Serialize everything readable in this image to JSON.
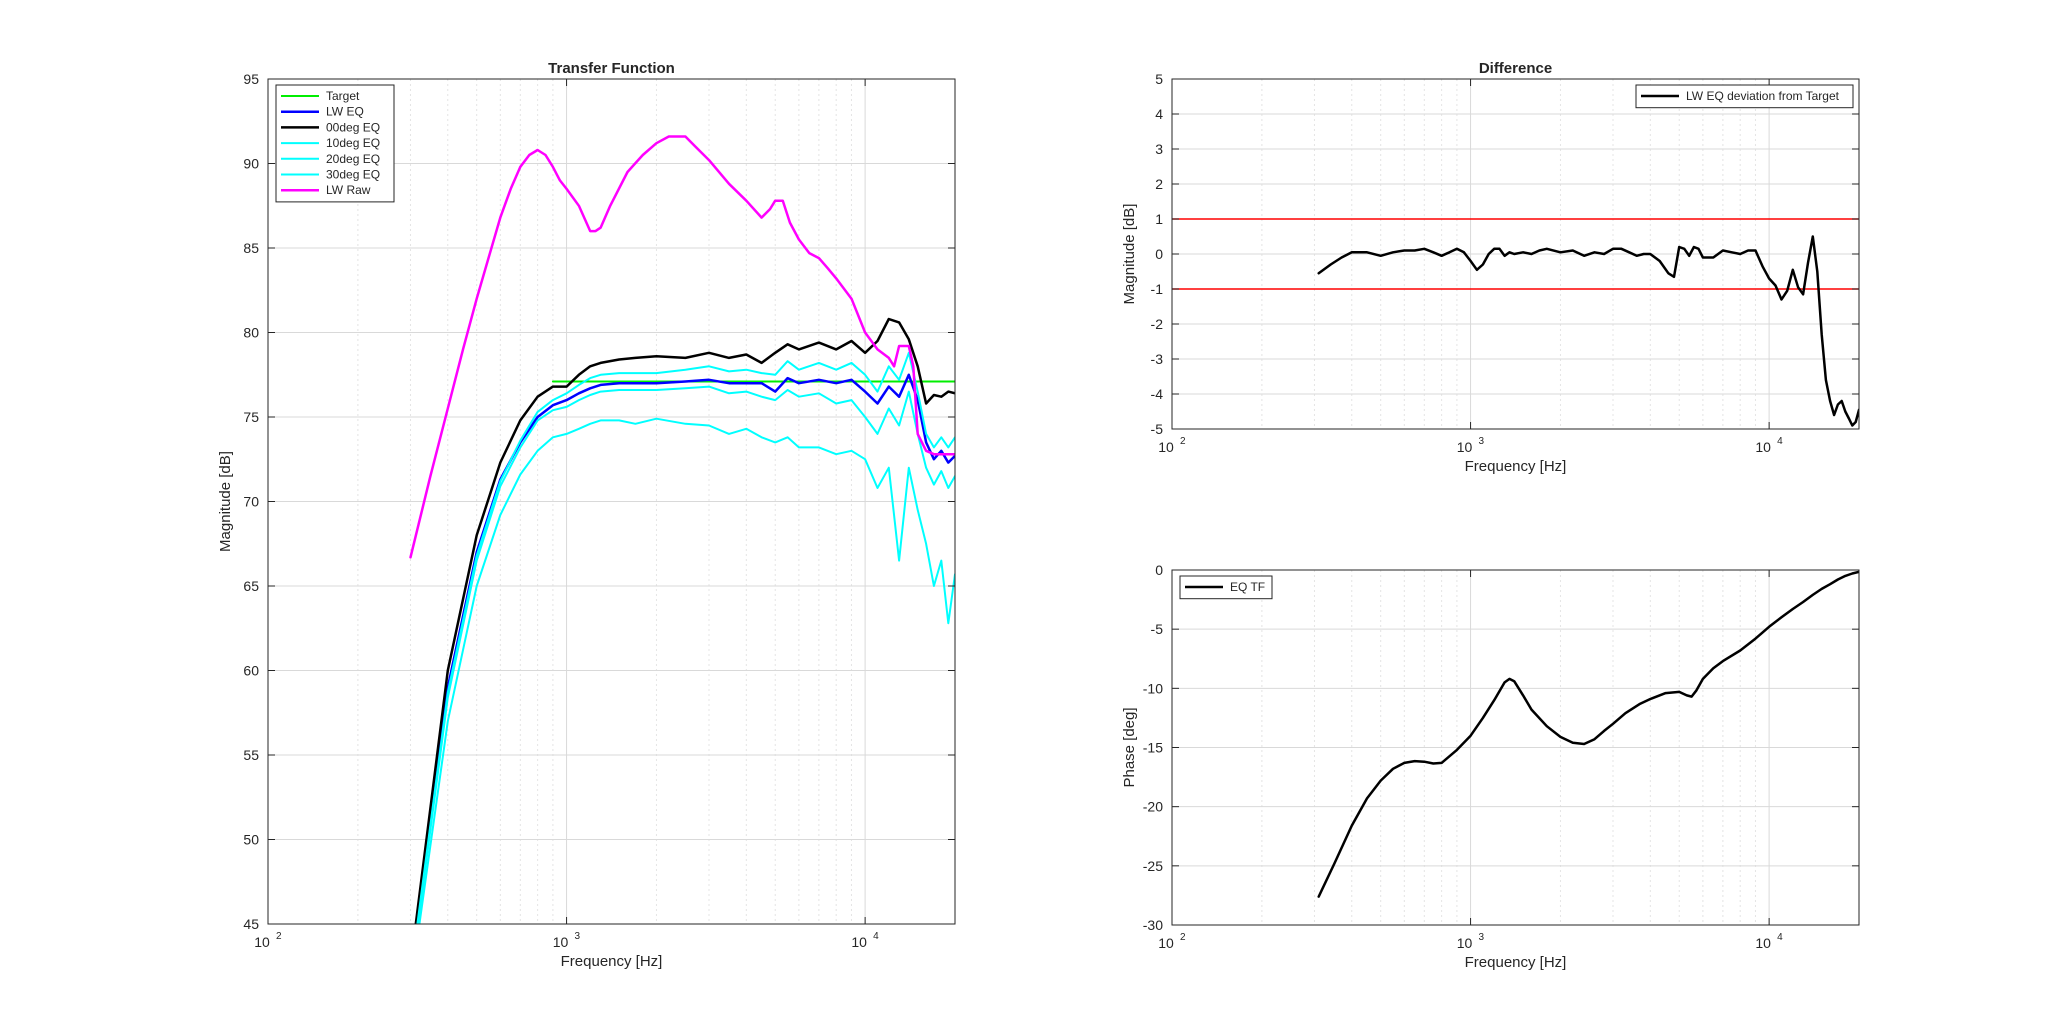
{
  "chart_data": [
    {
      "id": "tf",
      "type": "line",
      "title": "Transfer Function",
      "xlabel": "Frequency [Hz]",
      "ylabel": "Magnitude [dB]",
      "xscale": "log",
      "xlim": [
        100,
        20000
      ],
      "ylim": [
        45,
        95
      ],
      "xticks": [
        100,
        1000,
        10000
      ],
      "xtick_labels": [
        "10",
        "10",
        "10"
      ],
      "xtick_exponents": [
        "2",
        "3",
        "4"
      ],
      "yticks": [
        45,
        50,
        55,
        60,
        65,
        70,
        75,
        80,
        85,
        90,
        95
      ],
      "ytick_labels": [
        "45",
        "50",
        "55",
        "60",
        "65",
        "70",
        "75",
        "80",
        "85",
        "90",
        "95"
      ],
      "grid": true,
      "legend_position": "top-left",
      "series": [
        {
          "name": "Target",
          "color": "#00ee00",
          "width": 2,
          "x": [
            900,
            20000
          ],
          "y": [
            77.1,
            77.1
          ]
        },
        {
          "name": "LW EQ",
          "color": "#0000ff",
          "width": 2.5,
          "x": [
            310,
            400,
            500,
            600,
            700,
            800,
            900,
            1000,
            1100,
            1200,
            1300,
            1500,
            1700,
            2000,
            2500,
            3000,
            3500,
            4000,
            4500,
            5000,
            5500,
            6000,
            7000,
            8000,
            9000,
            10000,
            11000,
            12000,
            13000,
            14000,
            15000,
            16000,
            17000,
            18000,
            19000,
            20000
          ],
          "y": [
            44,
            59,
            67,
            71.3,
            73.5,
            75,
            75.7,
            76,
            76.4,
            76.7,
            76.9,
            77,
            77,
            77,
            77.1,
            77.2,
            77,
            77,
            77,
            76.5,
            77.3,
            77,
            77.2,
            77,
            77.2,
            76.5,
            75.8,
            76.8,
            76.2,
            77.5,
            76,
            73.5,
            72.5,
            73,
            72.3,
            72.7
          ]
        },
        {
          "name": "00deg EQ",
          "color": "#000000",
          "width": 2.5,
          "x": [
            310,
            400,
            500,
            600,
            700,
            800,
            900,
            1000,
            1100,
            1200,
            1300,
            1500,
            1700,
            2000,
            2500,
            3000,
            3500,
            4000,
            4500,
            5000,
            5500,
            6000,
            7000,
            8000,
            9000,
            10000,
            11000,
            12000,
            13000,
            14000,
            15000,
            16000,
            17000,
            18000,
            19000,
            20000
          ],
          "y": [
            44.5,
            60,
            68,
            72.3,
            74.8,
            76.2,
            76.8,
            76.8,
            77.5,
            78,
            78.2,
            78.4,
            78.5,
            78.6,
            78.5,
            78.8,
            78.5,
            78.7,
            78.2,
            78.8,
            79.3,
            79,
            79.4,
            79,
            79.5,
            78.8,
            79.5,
            80.8,
            80.6,
            79.6,
            78,
            75.8,
            76.3,
            76.2,
            76.5,
            76.4
          ]
        },
        {
          "name": "10deg EQ",
          "color": "#00ffff",
          "width": 2,
          "x": [
            310,
            400,
            500,
            600,
            700,
            800,
            900,
            1000,
            1100,
            1200,
            1300,
            1500,
            1700,
            2000,
            2500,
            3000,
            3500,
            4000,
            4500,
            5000,
            5500,
            6000,
            7000,
            8000,
            9000,
            10000,
            11000,
            12000,
            13000,
            14000,
            15000,
            16000,
            17000,
            18000,
            19000,
            20000
          ],
          "y": [
            43.8,
            58.7,
            66.8,
            71.2,
            73.6,
            75.3,
            76,
            76.4,
            76.9,
            77.3,
            77.5,
            77.6,
            77.6,
            77.6,
            77.8,
            78,
            77.7,
            77.8,
            77.6,
            77.5,
            78.3,
            77.8,
            78.2,
            77.8,
            78.2,
            77.5,
            76.5,
            78,
            77.2,
            78.8,
            76.5,
            74,
            73.2,
            73.8,
            73.2,
            73.8
          ]
        },
        {
          "name": "20deg EQ",
          "color": "#00ffff",
          "width": 2,
          "x": [
            310,
            400,
            500,
            600,
            700,
            800,
            900,
            1000,
            1100,
            1200,
            1300,
            1500,
            1700,
            2000,
            2500,
            3000,
            3500,
            4000,
            4500,
            5000,
            5500,
            6000,
            7000,
            8000,
            9000,
            10000,
            11000,
            12000,
            13000,
            14000,
            15000,
            16000,
            17000,
            18000,
            19000,
            20000
          ],
          "y": [
            43.5,
            58.4,
            66.5,
            70.9,
            73.2,
            74.8,
            75.4,
            75.6,
            76,
            76.3,
            76.5,
            76.6,
            76.6,
            76.6,
            76.7,
            76.8,
            76.4,
            76.5,
            76.2,
            76,
            76.6,
            76.2,
            76.4,
            75.8,
            76,
            75,
            74,
            75.5,
            74.5,
            76.5,
            74,
            72,
            71,
            71.8,
            70.8,
            71.5
          ]
        },
        {
          "name": "30deg EQ",
          "color": "#00ffff",
          "width": 2,
          "x": [
            310,
            400,
            500,
            600,
            700,
            800,
            900,
            1000,
            1100,
            1200,
            1300,
            1500,
            1700,
            2000,
            2500,
            3000,
            3500,
            4000,
            4500,
            5000,
            5500,
            6000,
            7000,
            8000,
            9000,
            10000,
            11000,
            12000,
            13000,
            14000,
            15000,
            16000,
            17000,
            18000,
            19000,
            20000
          ],
          "y": [
            43,
            57,
            65,
            69.2,
            71.6,
            73,
            73.8,
            74,
            74.3,
            74.6,
            74.8,
            74.8,
            74.6,
            74.9,
            74.6,
            74.5,
            74,
            74.3,
            73.8,
            73.5,
            73.8,
            73.2,
            73.2,
            72.8,
            73,
            72.5,
            70.8,
            72,
            66.5,
            72,
            69.5,
            67.5,
            65,
            66.5,
            62.8,
            65.7
          ]
        },
        {
          "name": "LW Raw",
          "color": "#ff00ff",
          "width": 2.5,
          "x": [
            300,
            350,
            400,
            450,
            500,
            550,
            600,
            650,
            700,
            750,
            800,
            850,
            900,
            950,
            1000,
            1100,
            1200,
            1250,
            1300,
            1400,
            1600,
            1800,
            2000,
            2200,
            2500,
            2700,
            3000,
            3500,
            4000,
            4500,
            4800,
            5000,
            5300,
            5600,
            6000,
            6500,
            7000,
            7500,
            8000,
            9000,
            10000,
            11000,
            12000,
            12500,
            13000,
            14000,
            14500,
            15000,
            16000,
            17000,
            18000,
            19000,
            20000
          ],
          "y": [
            66.7,
            71.5,
            75.5,
            79,
            82,
            84.5,
            86.8,
            88.5,
            89.8,
            90.5,
            90.8,
            90.5,
            89.8,
            89,
            88.5,
            87.5,
            86,
            86,
            86.2,
            87.5,
            89.5,
            90.5,
            91.2,
            91.6,
            91.6,
            91,
            90.2,
            88.8,
            87.8,
            86.8,
            87.3,
            87.8,
            87.8,
            86.5,
            85.5,
            84.7,
            84.4,
            83.8,
            83.2,
            82,
            80,
            79,
            78.5,
            78,
            79.2,
            79.2,
            78,
            74,
            73,
            72.8,
            72.8,
            72.8,
            72.8
          ]
        }
      ]
    },
    {
      "id": "diff",
      "type": "line",
      "title": "Difference",
      "xlabel": "Frequency [Hz]",
      "ylabel": "Magnitude [dB]",
      "xscale": "log",
      "xlim": [
        100,
        20000
      ],
      "ylim": [
        -5,
        5
      ],
      "xticks": [
        100,
        1000,
        10000
      ],
      "xtick_labels": [
        "10",
        "10",
        "10"
      ],
      "xtick_exponents": [
        "2",
        "3",
        "4"
      ],
      "yticks": [
        -5,
        -4,
        -3,
        -2,
        -1,
        0,
        1,
        2,
        3,
        4,
        5
      ],
      "ytick_labels": [
        "-5",
        "-4",
        "-3",
        "-2",
        "-1",
        "0",
        "1",
        "2",
        "3",
        "4",
        "5"
      ],
      "grid": true,
      "legend_position": "top-right",
      "hlines": [
        {
          "y": 1,
          "color": "#ff0000"
        },
        {
          "y": -1,
          "color": "#ff0000"
        }
      ],
      "series": [
        {
          "name": "LW EQ deviation from Target",
          "color": "#000000",
          "width": 2.5,
          "x": [
            310,
            340,
            370,
            400,
            450,
            500,
            550,
            600,
            650,
            700,
            750,
            800,
            850,
            900,
            950,
            1000,
            1050,
            1100,
            1150,
            1200,
            1250,
            1300,
            1350,
            1400,
            1500,
            1600,
            1700,
            1800,
            2000,
            2200,
            2400,
            2600,
            2800,
            3000,
            3200,
            3400,
            3600,
            3800,
            4000,
            4300,
            4600,
            4800,
            5000,
            5200,
            5400,
            5600,
            5800,
            6000,
            6500,
            7000,
            7500,
            8000,
            8500,
            9000,
            9500,
            10000,
            10500,
            11000,
            11500,
            12000,
            12500,
            13000,
            13500,
            14000,
            14500,
            15000,
            15500,
            16000,
            16500,
            17000,
            17500,
            18000,
            18500,
            19000,
            19500,
            20000
          ],
          "y": [
            -0.55,
            -0.3,
            -0.1,
            0.05,
            0.05,
            -0.05,
            0.05,
            0.1,
            0.1,
            0.15,
            0.05,
            -0.05,
            0.05,
            0.15,
            0.05,
            -0.2,
            -0.45,
            -0.3,
            0,
            0.15,
            0.15,
            -0.05,
            0.05,
            0,
            0.05,
            0,
            0.1,
            0.15,
            0.05,
            0.1,
            -0.05,
            0.05,
            0,
            0.15,
            0.15,
            0.05,
            -0.05,
            0,
            0,
            -0.2,
            -0.55,
            -0.65,
            0.2,
            0.15,
            -0.05,
            0.2,
            0.15,
            -0.1,
            -0.1,
            0.1,
            0.05,
            0,
            0.1,
            0.1,
            -0.35,
            -0.7,
            -0.9,
            -1.3,
            -1.05,
            -0.45,
            -0.95,
            -1.15,
            -0.25,
            0.5,
            -0.5,
            -2.3,
            -3.6,
            -4.2,
            -4.6,
            -4.3,
            -4.2,
            -4.5,
            -4.7,
            -4.9,
            -4.8,
            -4.45
          ]
        }
      ]
    },
    {
      "id": "phase",
      "type": "line",
      "title": "",
      "xlabel": "Frequency [Hz]",
      "ylabel": "Phase [deg]",
      "xscale": "log",
      "xlim": [
        100,
        20000
      ],
      "ylim": [
        -30,
        0
      ],
      "xticks": [
        100,
        1000,
        10000
      ],
      "xtick_labels": [
        "10",
        "10",
        "10"
      ],
      "xtick_exponents": [
        "2",
        "3",
        "4"
      ],
      "yticks": [
        -30,
        -25,
        -20,
        -15,
        -10,
        -5,
        0
      ],
      "ytick_labels": [
        "-30",
        "-25",
        "-20",
        "-15",
        "-10",
        "-5",
        "0"
      ],
      "grid": true,
      "legend_position": "top-left",
      "series": [
        {
          "name": "EQ TF",
          "color": "#000000",
          "width": 2.5,
          "x": [
            310,
            350,
            400,
            450,
            500,
            550,
            600,
            650,
            700,
            750,
            800,
            900,
            1000,
            1100,
            1200,
            1300,
            1350,
            1400,
            1500,
            1600,
            1800,
            2000,
            2200,
            2400,
            2600,
            2800,
            3000,
            3300,
            3700,
            4000,
            4500,
            5000,
            5300,
            5500,
            5700,
            6000,
            6500,
            7000,
            8000,
            9000,
            10000,
            11000,
            12000,
            13000,
            14000,
            15000,
            16000,
            17000,
            18000,
            19000,
            20000
          ],
          "y": [
            -27.6,
            -24.8,
            -21.6,
            -19.3,
            -17.8,
            -16.8,
            -16.3,
            -16.15,
            -16.2,
            -16.35,
            -16.3,
            -15.2,
            -14,
            -12.5,
            -11,
            -9.5,
            -9.2,
            -9.4,
            -10.6,
            -11.8,
            -13.2,
            -14.1,
            -14.6,
            -14.7,
            -14.3,
            -13.6,
            -13,
            -12.1,
            -11.3,
            -10.9,
            -10.4,
            -10.3,
            -10.6,
            -10.7,
            -10.2,
            -9.2,
            -8.3,
            -7.7,
            -6.8,
            -5.8,
            -4.8,
            -4,
            -3.3,
            -2.7,
            -2.1,
            -1.6,
            -1.2,
            -0.8,
            -0.5,
            -0.3,
            -0.15
          ]
        }
      ]
    }
  ]
}
